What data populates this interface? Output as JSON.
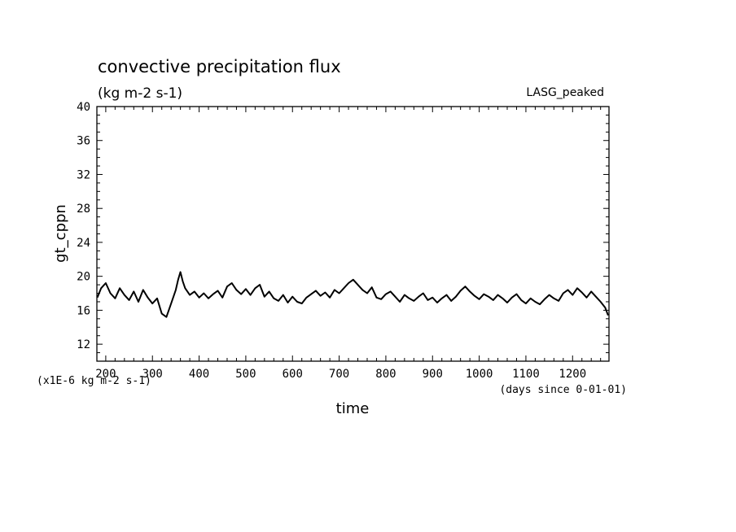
{
  "chart_data": {
    "type": "line",
    "title": "convective precipitation flux",
    "subtitle": "(kg m-2 s-1)",
    "dataset_label": "LASG_peaked",
    "xlabel": "time",
    "x_units_note": "(days since 0-01-01)",
    "ylabel": "gt_cppn",
    "y_scale_note": "(x1E-6 kg m-2 s-1)",
    "xlim": [
      181,
      1278
    ],
    "ylim": [
      10,
      40
    ],
    "x_ticks": [
      200,
      300,
      400,
      500,
      600,
      700,
      800,
      900,
      1000,
      1100,
      1200
    ],
    "y_ticks": [
      12,
      16,
      20,
      24,
      28,
      32,
      36,
      40
    ],
    "grid": false,
    "series": [
      {
        "color": "#000000",
        "x": [
          182,
          190,
          200,
          210,
          220,
          230,
          240,
          250,
          260,
          270,
          280,
          290,
          300,
          310,
          320,
          330,
          340,
          350,
          355,
          360,
          365,
          370,
          380,
          390,
          400,
          410,
          420,
          430,
          440,
          450,
          460,
          470,
          480,
          490,
          500,
          510,
          520,
          530,
          540,
          550,
          560,
          570,
          580,
          590,
          600,
          610,
          620,
          630,
          640,
          650,
          660,
          670,
          680,
          690,
          700,
          710,
          720,
          730,
          740,
          750,
          760,
          770,
          780,
          790,
          800,
          810,
          820,
          830,
          840,
          850,
          860,
          870,
          880,
          890,
          900,
          910,
          920,
          930,
          940,
          950,
          960,
          970,
          980,
          990,
          1000,
          1010,
          1020,
          1030,
          1040,
          1050,
          1060,
          1070,
          1080,
          1090,
          1100,
          1110,
          1120,
          1130,
          1140,
          1150,
          1160,
          1170,
          1180,
          1190,
          1200,
          1210,
          1220,
          1230,
          1240,
          1250,
          1260,
          1270,
          1276
        ],
        "y": [
          17.5,
          18.6,
          19.2,
          18.0,
          17.4,
          18.6,
          17.8,
          17.2,
          18.2,
          17.0,
          18.4,
          17.5,
          16.8,
          17.4,
          15.6,
          15.2,
          16.8,
          18.4,
          19.6,
          20.5,
          19.4,
          18.6,
          17.8,
          18.2,
          17.5,
          18.0,
          17.4,
          17.9,
          18.3,
          17.5,
          18.8,
          19.2,
          18.4,
          17.9,
          18.5,
          17.8,
          18.6,
          19.0,
          17.6,
          18.2,
          17.4,
          17.1,
          17.8,
          16.9,
          17.6,
          17.0,
          16.8,
          17.5,
          17.9,
          18.3,
          17.7,
          18.1,
          17.5,
          18.4,
          18.0,
          18.6,
          19.2,
          19.6,
          19.0,
          18.4,
          18.0,
          18.7,
          17.5,
          17.3,
          17.9,
          18.2,
          17.6,
          17.0,
          17.8,
          17.4,
          17.1,
          17.6,
          18.0,
          17.2,
          17.5,
          16.9,
          17.4,
          17.8,
          17.1,
          17.6,
          18.3,
          18.8,
          18.2,
          17.7,
          17.3,
          17.9,
          17.6,
          17.2,
          17.8,
          17.4,
          16.9,
          17.5,
          17.9,
          17.2,
          16.8,
          17.4,
          17.0,
          16.7,
          17.3,
          17.8,
          17.4,
          17.1,
          18.0,
          18.4,
          17.8,
          18.6,
          18.1,
          17.5,
          18.2,
          17.6,
          17.0,
          16.3,
          15.4
        ]
      }
    ]
  }
}
